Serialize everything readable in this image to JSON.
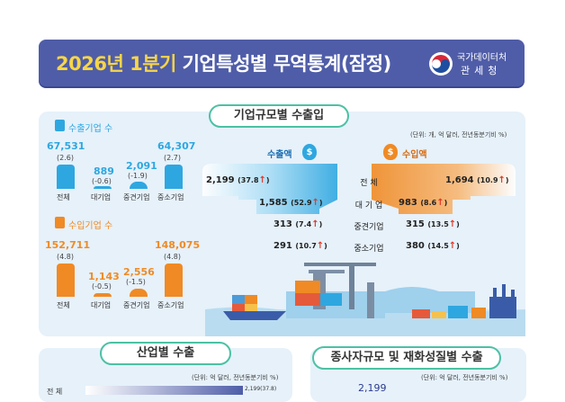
{
  "header": {
    "title_highlight": "2026년 1분기",
    "title_rest": " 기업특성별 무역통계(잠정)",
    "agency_line1": "국가데이터처",
    "agency_line2": "관세청"
  },
  "top_panel": {
    "section_title": "기업규모별 수출입",
    "unit_note": "(단위: 개, 억 달러, 전년동분기비 %)",
    "export_companies": {
      "title": "수출기업 수",
      "color": "#2ea7e0",
      "items": [
        {
          "label": "전체",
          "value": "67,531",
          "pct": "(2.6)"
        },
        {
          "label": "대기업",
          "value": "889",
          "pct": "(-0.6)"
        },
        {
          "label": "중견기업",
          "value": "2,091",
          "pct": "(-1.9)"
        },
        {
          "label": "중소기업",
          "value": "64,307",
          "pct": "(2.7)"
        }
      ]
    },
    "import_companies": {
      "title": "수입기업 수",
      "color": "#f08a24",
      "items": [
        {
          "label": "전체",
          "value": "152,711",
          "pct": "(4.8)"
        },
        {
          "label": "대기업",
          "value": "1,143",
          "pct": "(-0.5)"
        },
        {
          "label": "중견기업",
          "value": "2,556",
          "pct": "(-1.5)"
        },
        {
          "label": "중소기업",
          "value": "148,075",
          "pct": "(4.8)"
        }
      ]
    },
    "trade": {
      "export_label": "수출액",
      "import_label": "수입액",
      "currency_icon": "$",
      "rows": [
        {
          "label": "전 체",
          "export": "2,199",
          "export_pct": "(37.8",
          "import": "1,694",
          "import_pct": "(10.9"
        },
        {
          "label": "대 기 업",
          "export": "1,585",
          "export_pct": "(52.9",
          "import": "983",
          "import_pct": "(8.6"
        },
        {
          "label": "중견기업",
          "export": "313",
          "export_pct": "(7.4",
          "import": "315",
          "import_pct": "(13.5"
        },
        {
          "label": "중소기업",
          "export": "291",
          "export_pct": "(10.7",
          "import": "380",
          "import_pct": "(14.5"
        }
      ],
      "up_arrow": "↑",
      "close_paren": ")"
    }
  },
  "bottom_left": {
    "section_title": "산업별 수출",
    "unit_note": "(단위: 억 달러, 전년동분기비 %)",
    "first_row_label": "전 체",
    "first_row_value": "2,199(37.8)"
  },
  "bottom_right": {
    "section_title": "종사자규모 및 재화성질별 수출",
    "unit_note": "(단위: 억 달러, 전년동분기비 %)",
    "first_value": "2,199"
  }
}
